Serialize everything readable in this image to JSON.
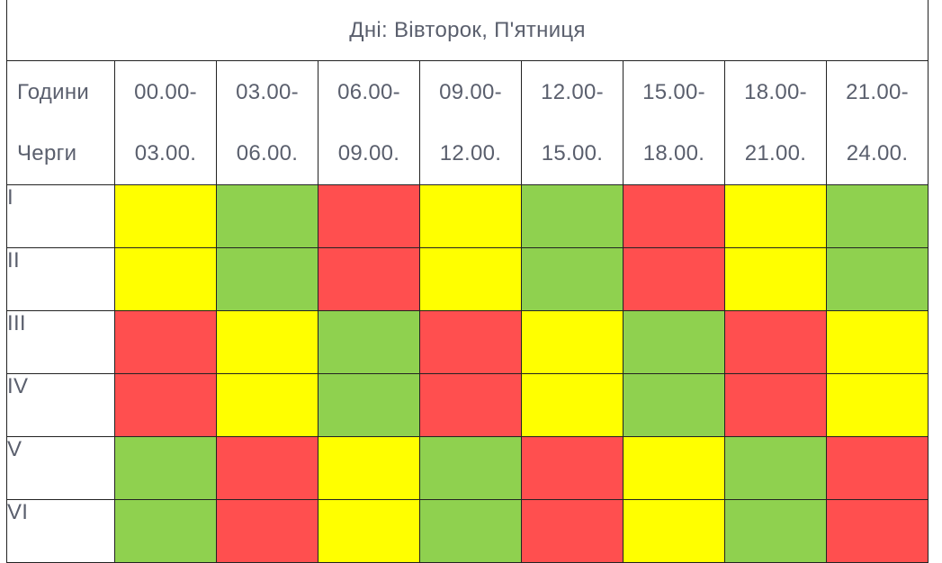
{
  "days_title": "Дні: Вівторок, П'ятниця",
  "hours_label": "Години",
  "queues_label": "Черги",
  "slots": [
    {
      "start": "00.00-",
      "end": "03.00."
    },
    {
      "start": "03.00-",
      "end": "06.00."
    },
    {
      "start": "06.00-",
      "end": "09.00."
    },
    {
      "start": "09.00-",
      "end": "12.00."
    },
    {
      "start": "12.00-",
      "end": "15.00."
    },
    {
      "start": "15.00-",
      "end": "18.00."
    },
    {
      "start": "18.00-",
      "end": "21.00."
    },
    {
      "start": "21.00-",
      "end": "24.00."
    }
  ],
  "status_colors": {
    "on": "#8fd14f",
    "maybe": "#ffff00",
    "off": "#ff4f4f"
  },
  "queues": [
    {
      "label": "I",
      "statuses": [
        "maybe",
        "on",
        "off",
        "maybe",
        "on",
        "off",
        "maybe",
        "on"
      ]
    },
    {
      "label": "II",
      "statuses": [
        "maybe",
        "on",
        "off",
        "maybe",
        "on",
        "off",
        "maybe",
        "on"
      ]
    },
    {
      "label": "III",
      "statuses": [
        "off",
        "maybe",
        "on",
        "off",
        "maybe",
        "on",
        "off",
        "maybe"
      ]
    },
    {
      "label": "IV",
      "statuses": [
        "off",
        "maybe",
        "on",
        "off",
        "maybe",
        "on",
        "off",
        "maybe"
      ]
    },
    {
      "label": "V",
      "statuses": [
        "on",
        "off",
        "maybe",
        "on",
        "off",
        "maybe",
        "on",
        "off"
      ]
    },
    {
      "label": "VI",
      "statuses": [
        "on",
        "off",
        "maybe",
        "on",
        "off",
        "maybe",
        "on",
        "off"
      ]
    }
  ]
}
